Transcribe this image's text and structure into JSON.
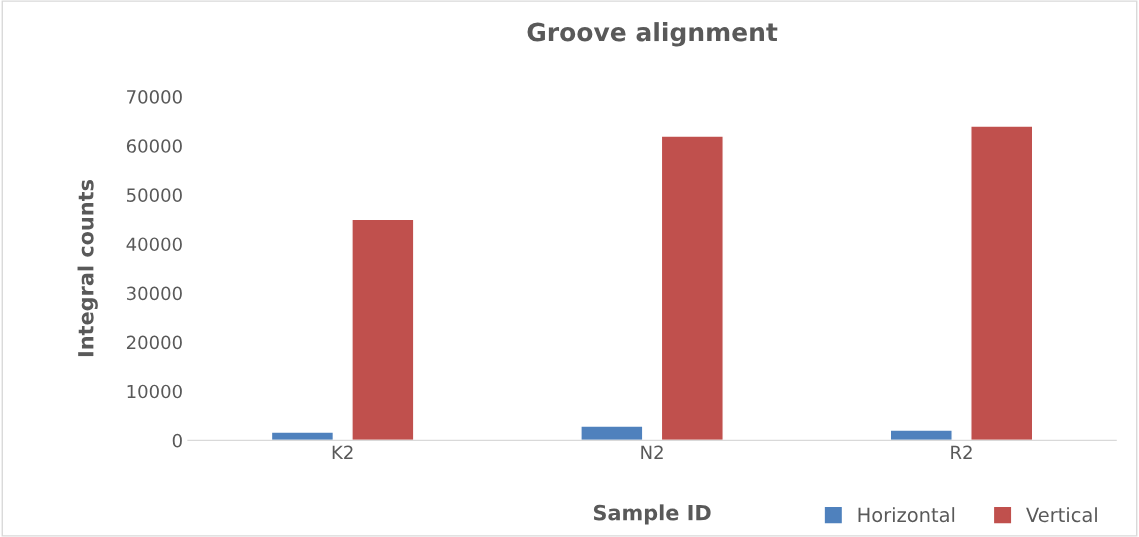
{
  "chart_data": {
    "type": "bar",
    "title": "Groove alignment",
    "xlabel": "Sample ID",
    "ylabel": "Integral counts",
    "categories": [
      "K2",
      "N2",
      "R2"
    ],
    "series": [
      {
        "name": "Horizontal",
        "color": "#4f81bd",
        "values": [
          1700,
          2900,
          2100
        ]
      },
      {
        "name": "Vertical",
        "color": "#c0504d",
        "values": [
          45000,
          62000,
          64000
        ]
      }
    ],
    "ylim": [
      0,
      70000
    ],
    "yticks": [
      0,
      10000,
      20000,
      30000,
      40000,
      50000,
      60000,
      70000
    ],
    "grid": false,
    "legend": "bottom right"
  }
}
